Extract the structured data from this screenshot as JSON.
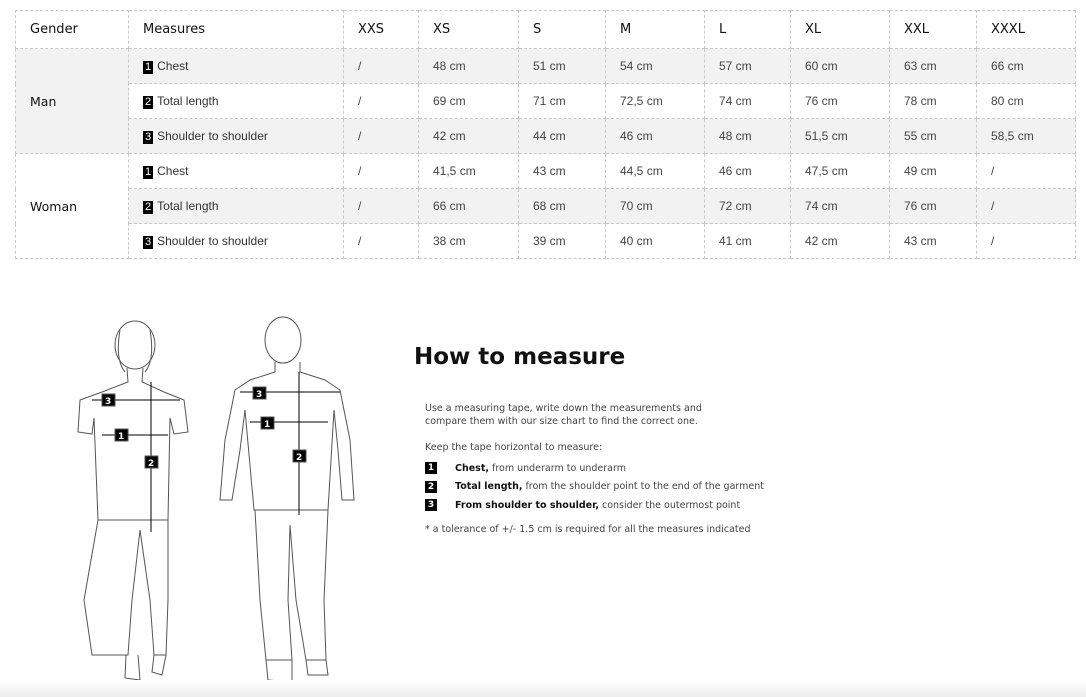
{
  "table": {
    "headers": [
      "Gender",
      "Measures",
      "XXS",
      "XS",
      "S",
      "M",
      "L",
      "XL",
      "XXL",
      "XXXL"
    ],
    "groups": [
      {
        "gender": "Man",
        "rows": [
          {
            "num": "1",
            "measure": "Chest",
            "values": [
              "/",
              "48 cm",
              "51 cm",
              "54 cm",
              "57 cm",
              "60 cm",
              "63 cm",
              "66 cm"
            ]
          },
          {
            "num": "2",
            "measure": "Total length",
            "values": [
              "/",
              "69 cm",
              "71 cm",
              "72,5 cm",
              "74 cm",
              "76 cm",
              "78 cm",
              "80 cm"
            ]
          },
          {
            "num": "3",
            "measure": "Shoulder to shoulder",
            "values": [
              "/",
              "42 cm",
              "44 cm",
              "46 cm",
              "48 cm",
              "51,5 cm",
              "55 cm",
              "58,5 cm"
            ]
          }
        ]
      },
      {
        "gender": "Woman",
        "rows": [
          {
            "num": "1",
            "measure": "Chest",
            "values": [
              "/",
              "41,5 cm",
              "43 cm",
              "44,5 cm",
              "46 cm",
              "47,5 cm",
              "49 cm",
              "/"
            ]
          },
          {
            "num": "2",
            "measure": "Total length",
            "values": [
              "/",
              "66 cm",
              "68 cm",
              "70 cm",
              "72 cm",
              "74 cm",
              "76 cm",
              "/"
            ]
          },
          {
            "num": "3",
            "measure": "Shoulder to shoulder",
            "values": [
              "/",
              "38 cm",
              "39 cm",
              "40 cm",
              "41 cm",
              "42 cm",
              "43 cm",
              "/"
            ]
          }
        ]
      }
    ]
  },
  "howto": {
    "title": "How to measure",
    "intro": "Use a measuring tape, write down the measurements and compare them with our size chart to find the correct one.",
    "keep": "Keep the tape horizontal to measure:",
    "items": [
      {
        "num": "1",
        "bold": "Chest,",
        "text": "from underarm to underarm"
      },
      {
        "num": "2",
        "bold": "Total length,",
        "text": "from the shoulder point to the end of the garment"
      },
      {
        "num": "3",
        "bold": "From shoulder to shoulder,",
        "text": "consider the outermost point"
      }
    ],
    "tolerance": "* a tolerance of +/- 1.5 cm is required for all the measures indicated"
  },
  "figures": {
    "labels": [
      "1",
      "2",
      "3"
    ]
  }
}
